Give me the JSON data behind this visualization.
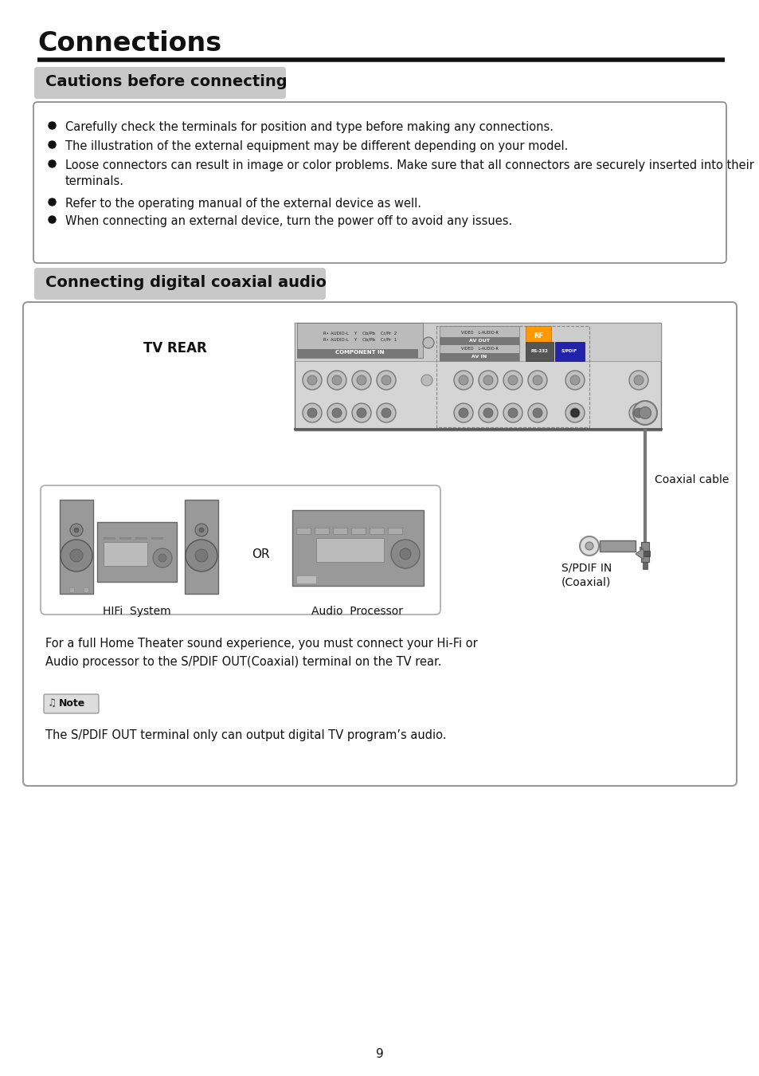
{
  "title": "Connections",
  "section1_title": "Cautions before connecting",
  "section2_title": "Connecting digital coaxial audio",
  "bullets": [
    "Carefully check the terminals for position and type before making any connections.",
    "The illustration of the external equipment may be different depending on your model.",
    "Loose connectors can result in image or color problems. Make sure that all connectors are securely inserted into their\nterminals.",
    "Refer to the operating manual of the external device as well.",
    "When connecting an external device, turn the power off to avoid any issues."
  ],
  "tv_rear_label": "TV REAR",
  "coaxial_cable_label": "Coaxial cable",
  "spdif_label": "S/PDIF IN\n(Coaxial)",
  "hifi_label": "HIFi  System",
  "audio_label": "Audio  Processor",
  "or_label": "OR",
  "description": "For a full Home Theater sound experience, you must connect your Hi-Fi or\nAudio processor to the S/PDIF OUT(Coaxial) terminal on the TV rear.",
  "note_label": "Note",
  "note_text": "The S/PDIF OUT terminal only can output digital TV program’s audio.",
  "page_number": "9",
  "bg_color": "#ffffff",
  "section_bg_color": "#c8c8c8",
  "box_border_color": "#888888",
  "title_color": "#000000"
}
